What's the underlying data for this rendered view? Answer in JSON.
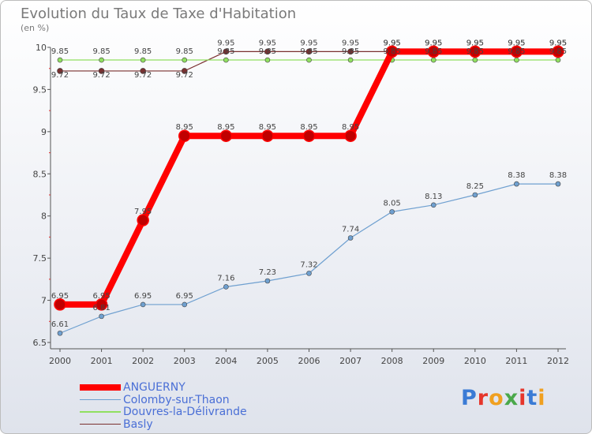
{
  "header": {
    "title": "Evolution du Taux de Taxe d'Habitation",
    "unit": "(en %)"
  },
  "brand": {
    "logo": "Proxiti"
  },
  "colors": {
    "ANGUERNY": "#ff0000",
    "Colomby-sur-Thaon": "#6fa0d0",
    "Douvres-la-Délivrande": "#90e060",
    "Basly": "#7a3030"
  },
  "chart_data": {
    "type": "line",
    "title": "Evolution du Taux de Taxe d'Habitation",
    "ylabel": "(en %)",
    "x": [
      2000,
      2001,
      2002,
      2003,
      2004,
      2005,
      2006,
      2007,
      2008,
      2009,
      2010,
      2011,
      2012
    ],
    "ylim": [
      6.5,
      10
    ],
    "yticks": [
      6.5,
      7,
      7.5,
      8,
      8.5,
      9,
      9.5,
      10
    ],
    "grid": false,
    "legend": "bottom",
    "series": [
      {
        "name": "ANGUERNY",
        "values": [
          6.95,
          6.95,
          7.95,
          8.95,
          8.95,
          8.95,
          8.95,
          8.95,
          9.95,
          9.95,
          9.95,
          9.95,
          9.95
        ]
      },
      {
        "name": "Colomby-sur-Thaon",
        "values": [
          6.61,
          6.81,
          6.95,
          6.95,
          7.16,
          7.23,
          7.32,
          7.74,
          8.05,
          8.13,
          8.25,
          8.38,
          8.38
        ]
      },
      {
        "name": "Douvres-la-Délivrande",
        "values": [
          9.85,
          9.85,
          9.85,
          9.85,
          9.85,
          9.85,
          9.85,
          9.85,
          9.85,
          9.85,
          9.85,
          9.85,
          9.85
        ]
      },
      {
        "name": "Basly",
        "values": [
          9.72,
          9.72,
          9.72,
          9.72,
          9.95,
          9.95,
          9.95,
          9.95,
          9.95,
          9.95,
          9.95,
          9.95,
          9.95
        ]
      }
    ]
  }
}
